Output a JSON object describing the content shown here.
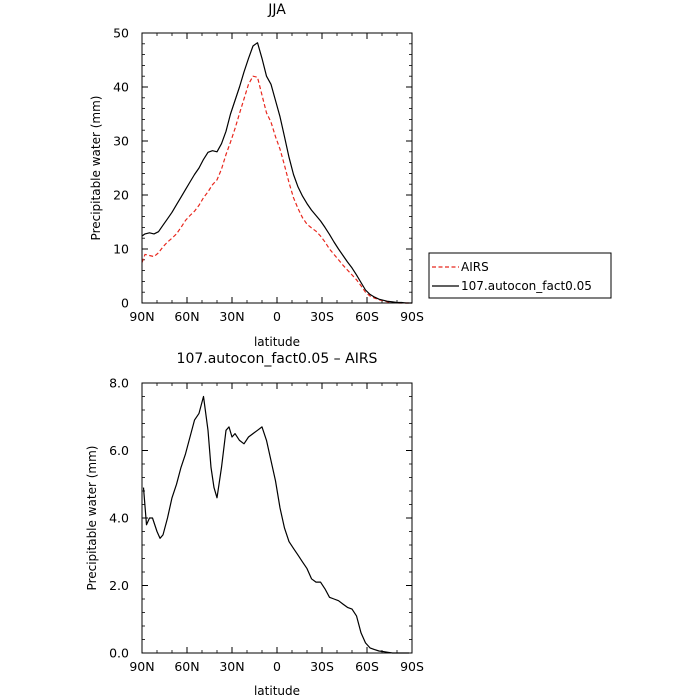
{
  "chart_data": [
    {
      "type": "line",
      "title": "JJA",
      "xlabel": "latitude",
      "ylabel": "Precipitable water  (mm)",
      "xlim": [
        90,
        -90
      ],
      "ylim": [
        0,
        50
      ],
      "x_ticks": [
        90,
        60,
        30,
        0,
        -30,
        -60,
        -90
      ],
      "x_tick_labels": [
        "90N",
        "60N",
        "30N",
        "0",
        "30S",
        "60S",
        "90S"
      ],
      "y_ticks": [
        0,
        10,
        20,
        30,
        40,
        50
      ],
      "y_tick_labels": [
        "0",
        "10",
        "20",
        "30",
        "40",
        "50"
      ],
      "legend_position": "right",
      "series": [
        {
          "name": "AIRS",
          "color": "#e8281e",
          "dash": "dashed",
          "x": [
            90,
            88,
            85,
            82,
            79,
            76,
            73,
            70,
            67,
            64,
            61,
            58,
            55,
            52,
            49,
            46,
            43,
            40,
            37,
            34,
            31,
            28,
            25,
            22,
            19,
            16,
            13,
            10,
            7,
            4,
            1,
            -2,
            -5,
            -8,
            -11,
            -14,
            -17,
            -20,
            -23,
            -26,
            -29,
            -32,
            -35,
            -38,
            -41,
            -44,
            -47,
            -50,
            -53,
            -56,
            -59,
            -62,
            -65,
            -68,
            -71,
            -74,
            -77,
            -80,
            -83,
            -86,
            -88,
            -90
          ],
          "y": [
            7.5,
            9.0,
            8.8,
            8.6,
            9.3,
            10.4,
            11.3,
            12.0,
            12.8,
            14.0,
            15.3,
            16.2,
            17.0,
            18.1,
            19.5,
            20.6,
            21.9,
            22.8,
            24.8,
            27.5,
            29.8,
            32.3,
            35.1,
            37.8,
            40.5,
            42.0,
            41.8,
            38.5,
            35.2,
            33.5,
            30.8,
            28.5,
            25.5,
            22.3,
            19.5,
            17.5,
            15.8,
            14.6,
            13.9,
            13.3,
            12.4,
            11.3,
            10.0,
            9.0,
            8.0,
            7.0,
            6.1,
            5.2,
            4.3,
            3.2,
            2.0,
            1.3,
            0.9,
            0.6,
            0.4,
            0.2,
            0.1,
            0.0,
            0.0,
            0.0,
            0.0,
            0.0
          ]
        },
        {
          "name": "107.autocon_fact0.05",
          "color": "#000000",
          "dash": "solid",
          "x": [
            90,
            88,
            85,
            82,
            79,
            76,
            73,
            70,
            67,
            64,
            61,
            58,
            55,
            52,
            49,
            46,
            43,
            40,
            37,
            34,
            31,
            28,
            25,
            22,
            19,
            16,
            13,
            10,
            7,
            4,
            1,
            -2,
            -5,
            -8,
            -11,
            -14,
            -17,
            -20,
            -23,
            -26,
            -29,
            -32,
            -35,
            -38,
            -41,
            -44,
            -47,
            -50,
            -53,
            -56,
            -59,
            -62,
            -65,
            -68,
            -71,
            -74,
            -77,
            -80,
            -83,
            -86,
            -88,
            -90
          ],
          "y": [
            12.4,
            12.8,
            13.0,
            12.8,
            13.2,
            14.4,
            15.6,
            16.8,
            18.2,
            19.6,
            21.0,
            22.4,
            23.8,
            25.0,
            26.6,
            27.9,
            28.2,
            28.0,
            29.5,
            31.8,
            35.0,
            37.5,
            40.0,
            42.8,
            45.3,
            47.6,
            48.2,
            45.3,
            42.0,
            40.5,
            37.5,
            34.5,
            30.8,
            27.0,
            23.8,
            21.5,
            19.8,
            18.4,
            17.2,
            16.2,
            15.2,
            14.0,
            12.7,
            11.3,
            10.0,
            8.8,
            7.6,
            6.5,
            5.2,
            3.8,
            2.4,
            1.6,
            1.1,
            0.7,
            0.5,
            0.3,
            0.2,
            0.1,
            0.1,
            0.0,
            0.0,
            0.0
          ]
        }
      ]
    },
    {
      "type": "line",
      "title": "107.autocon_fact0.05  –  AIRS",
      "xlabel": "latitude",
      "ylabel": "Precipitable water  (mm)",
      "xlim": [
        90,
        -90
      ],
      "ylim": [
        0,
        8
      ],
      "x_ticks": [
        90,
        60,
        30,
        0,
        -30,
        -60,
        -90
      ],
      "x_tick_labels": [
        "90N",
        "60N",
        "30N",
        "0",
        "30S",
        "60S",
        "90S"
      ],
      "y_ticks": [
        0,
        2,
        4,
        6,
        8
      ],
      "y_tick_labels": [
        "0.0",
        "2.0",
        "4.0",
        "6.0",
        "8.0"
      ],
      "series": [
        {
          "color": "#000000",
          "dash": "solid",
          "x": [
            89,
            87,
            85,
            83,
            80,
            78,
            76,
            73,
            70,
            67,
            64,
            61,
            58,
            55,
            52,
            49,
            46,
            44,
            42,
            40,
            37,
            34,
            32,
            30,
            28,
            25,
            22,
            19,
            16,
            13,
            10,
            7,
            4,
            1,
            -2,
            -5,
            -8,
            -11,
            -14,
            -17,
            -20,
            -23,
            -26,
            -29,
            -32,
            -35,
            -38,
            -41,
            -44,
            -47,
            -50,
            -53,
            -56,
            -59,
            -62,
            -65,
            -68,
            -71,
            -74,
            -77,
            -80,
            -83,
            -86,
            -88
          ],
          "y": [
            4.9,
            3.8,
            4.0,
            4.0,
            3.6,
            3.4,
            3.5,
            4.0,
            4.6,
            5.0,
            5.5,
            5.9,
            6.4,
            6.9,
            7.1,
            7.6,
            6.6,
            5.5,
            4.9,
            4.6,
            5.5,
            6.6,
            6.7,
            6.4,
            6.5,
            6.3,
            6.2,
            6.4,
            6.5,
            6.6,
            6.7,
            6.3,
            5.7,
            5.1,
            4.3,
            3.7,
            3.3,
            3.1,
            2.9,
            2.7,
            2.5,
            2.2,
            2.1,
            2.1,
            1.9,
            1.65,
            1.6,
            1.55,
            1.45,
            1.35,
            1.3,
            1.1,
            0.6,
            0.3,
            0.15,
            0.1,
            0.06,
            0.04,
            0.02,
            0.0,
            0.0,
            0.0,
            0.0,
            0.0
          ]
        }
      ]
    }
  ]
}
